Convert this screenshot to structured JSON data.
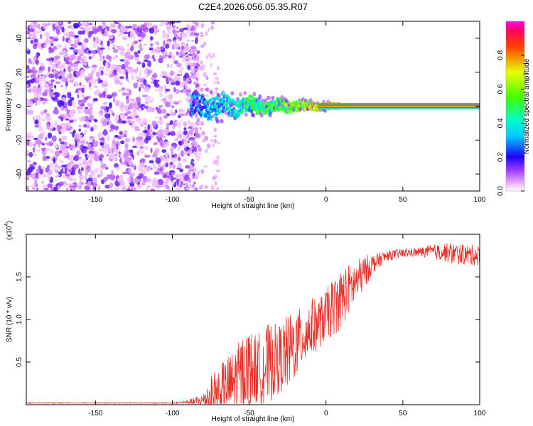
{
  "title": "C2E4.2026.056.05.35.R07",
  "chart_data": [
    {
      "type": "heatmap",
      "name": "spectrogram",
      "xlabel": "Height of straight line (km)",
      "ylabel": "Frequency (Hz)",
      "xlim": [
        -195,
        100
      ],
      "ylim": [
        -50,
        50
      ],
      "xticks": [
        -150,
        -100,
        -50,
        0,
        50,
        100
      ],
      "yticks": [
        -40,
        -20,
        0,
        20,
        40
      ],
      "description_of_content": [
        {
          "x_range": [
            -195,
            -85
          ],
          "note": "broadband noise, low amplitude (purple/violet) across all frequencies"
        },
        {
          "x_range": [
            -85,
            10
          ],
          "note": "signal emerges near 0 Hz with fluctuations of about ±8 Hz, amplitude 0.2-0.6"
        },
        {
          "x_range": [
            10,
            100
          ],
          "note": "steady line at 0 Hz, normalized amplitude near 1.0"
        }
      ],
      "colorbar": {
        "label": "Normalized spectral amplitude",
        "range": [
          0.0,
          1.0
        ],
        "ticks": [
          "0.0",
          "0.2",
          "0.4",
          "0.6",
          "0.8"
        ],
        "colors": [
          "#ffffff",
          "#a070ff",
          "#0000ff",
          "#00ffff",
          "#00ff00",
          "#ffff00",
          "#ff0000",
          "#ff00ff"
        ]
      }
    },
    {
      "type": "line",
      "name": "snr",
      "xlabel": "Height of straight line (km)",
      "ylabel": "SNR (10 * v/v)",
      "scale_label": "(x10",
      "scale_exp": "4",
      "scale_close": ")",
      "xlim": [
        -195,
        100
      ],
      "ylim": [
        0,
        2.0
      ],
      "xticks": [
        -150,
        -100,
        -50,
        0,
        50,
        100
      ],
      "yticks": [
        "0.5",
        "1.0",
        "1.5"
      ],
      "color": "#e8312a",
      "series": [
        {
          "name": "SNR",
          "x": [
            -195,
            -180,
            -160,
            -140,
            -120,
            -100,
            -90,
            -80,
            -75,
            -70,
            -65,
            -60,
            -55,
            -50,
            -45,
            -40,
            -35,
            -30,
            -25,
            -20,
            -15,
            -10,
            -5,
            0,
            5,
            10,
            15,
            20,
            25,
            30,
            40,
            50,
            60,
            70,
            80,
            90,
            100
          ],
          "y": [
            0.02,
            0.02,
            0.02,
            0.02,
            0.02,
            0.02,
            0.03,
            0.05,
            0.1,
            0.15,
            0.2,
            0.25,
            0.35,
            0.45,
            0.4,
            0.45,
            0.5,
            0.55,
            0.6,
            0.7,
            0.8,
            0.9,
            0.95,
            1.05,
            1.15,
            1.25,
            1.35,
            1.45,
            1.55,
            1.65,
            1.75,
            1.78,
            1.79,
            1.8,
            1.78,
            1.76,
            1.75
          ],
          "noise": [
            0.0,
            0.0,
            0.0,
            0.0,
            0.0,
            0.0,
            0.02,
            0.08,
            0.25,
            0.3,
            0.35,
            0.4,
            0.45,
            0.45,
            0.4,
            0.5,
            0.45,
            0.4,
            0.45,
            0.4,
            0.35,
            0.35,
            0.3,
            0.3,
            0.35,
            0.35,
            0.3,
            0.25,
            0.2,
            0.12,
            0.06,
            0.05,
            0.05,
            0.08,
            0.12,
            0.12,
            0.12
          ]
        }
      ]
    }
  ]
}
